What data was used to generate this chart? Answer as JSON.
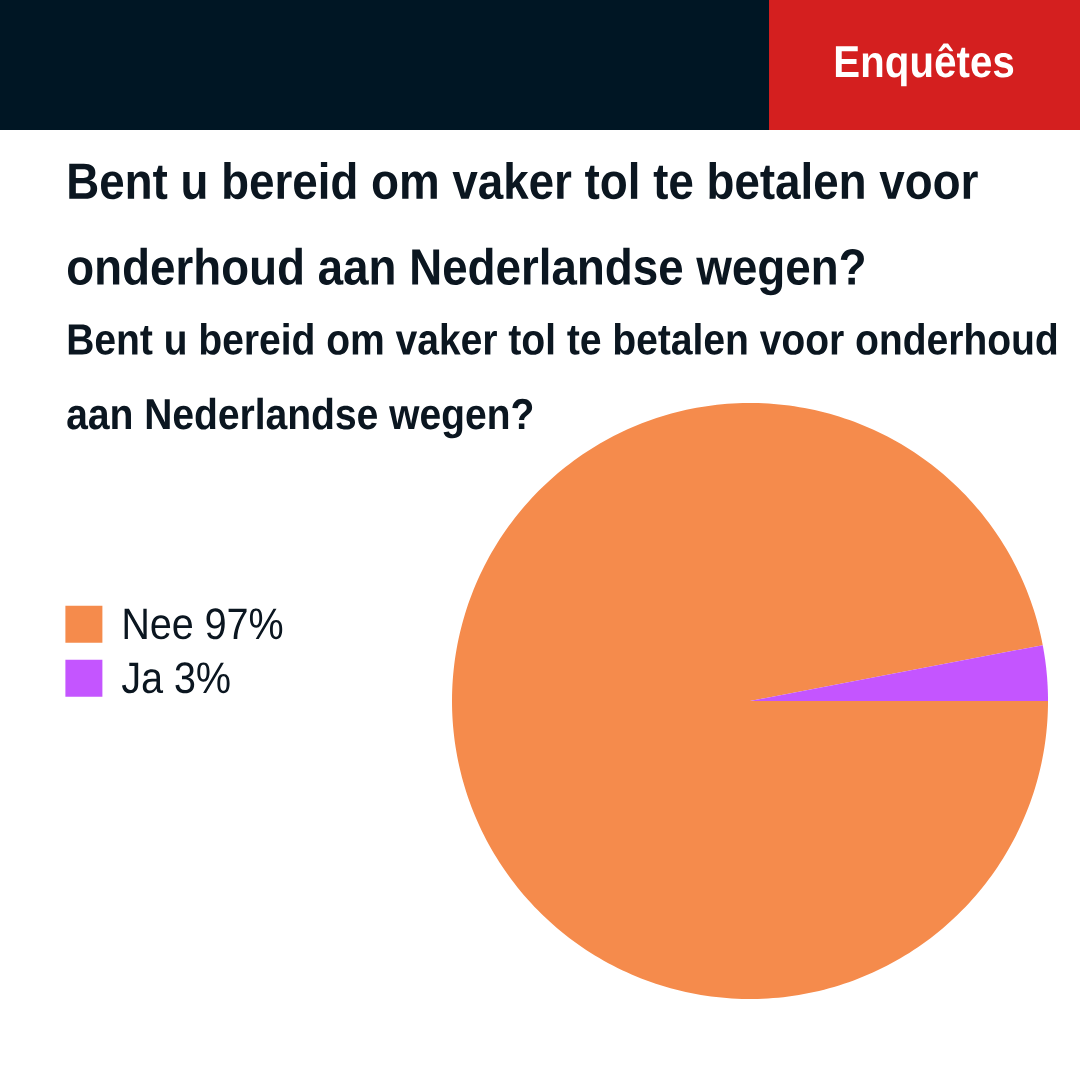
{
  "chart_data": {
    "type": "pie",
    "title": "Bent u bereid om vaker tol te betalen voor onderhoud aan Nederlandse wegen?",
    "subtitle": "Bent u bereid om vaker tol te betalen voor onderhoud aan Nederlandse wegen?",
    "categories": [
      "Nee 97%",
      "Ja 3%"
    ],
    "values": [
      97,
      3
    ],
    "colors": [
      "#f58b4c",
      "#c455ff"
    ],
    "legend": "left",
    "annotations": [
      "Enquêtes"
    ]
  }
}
